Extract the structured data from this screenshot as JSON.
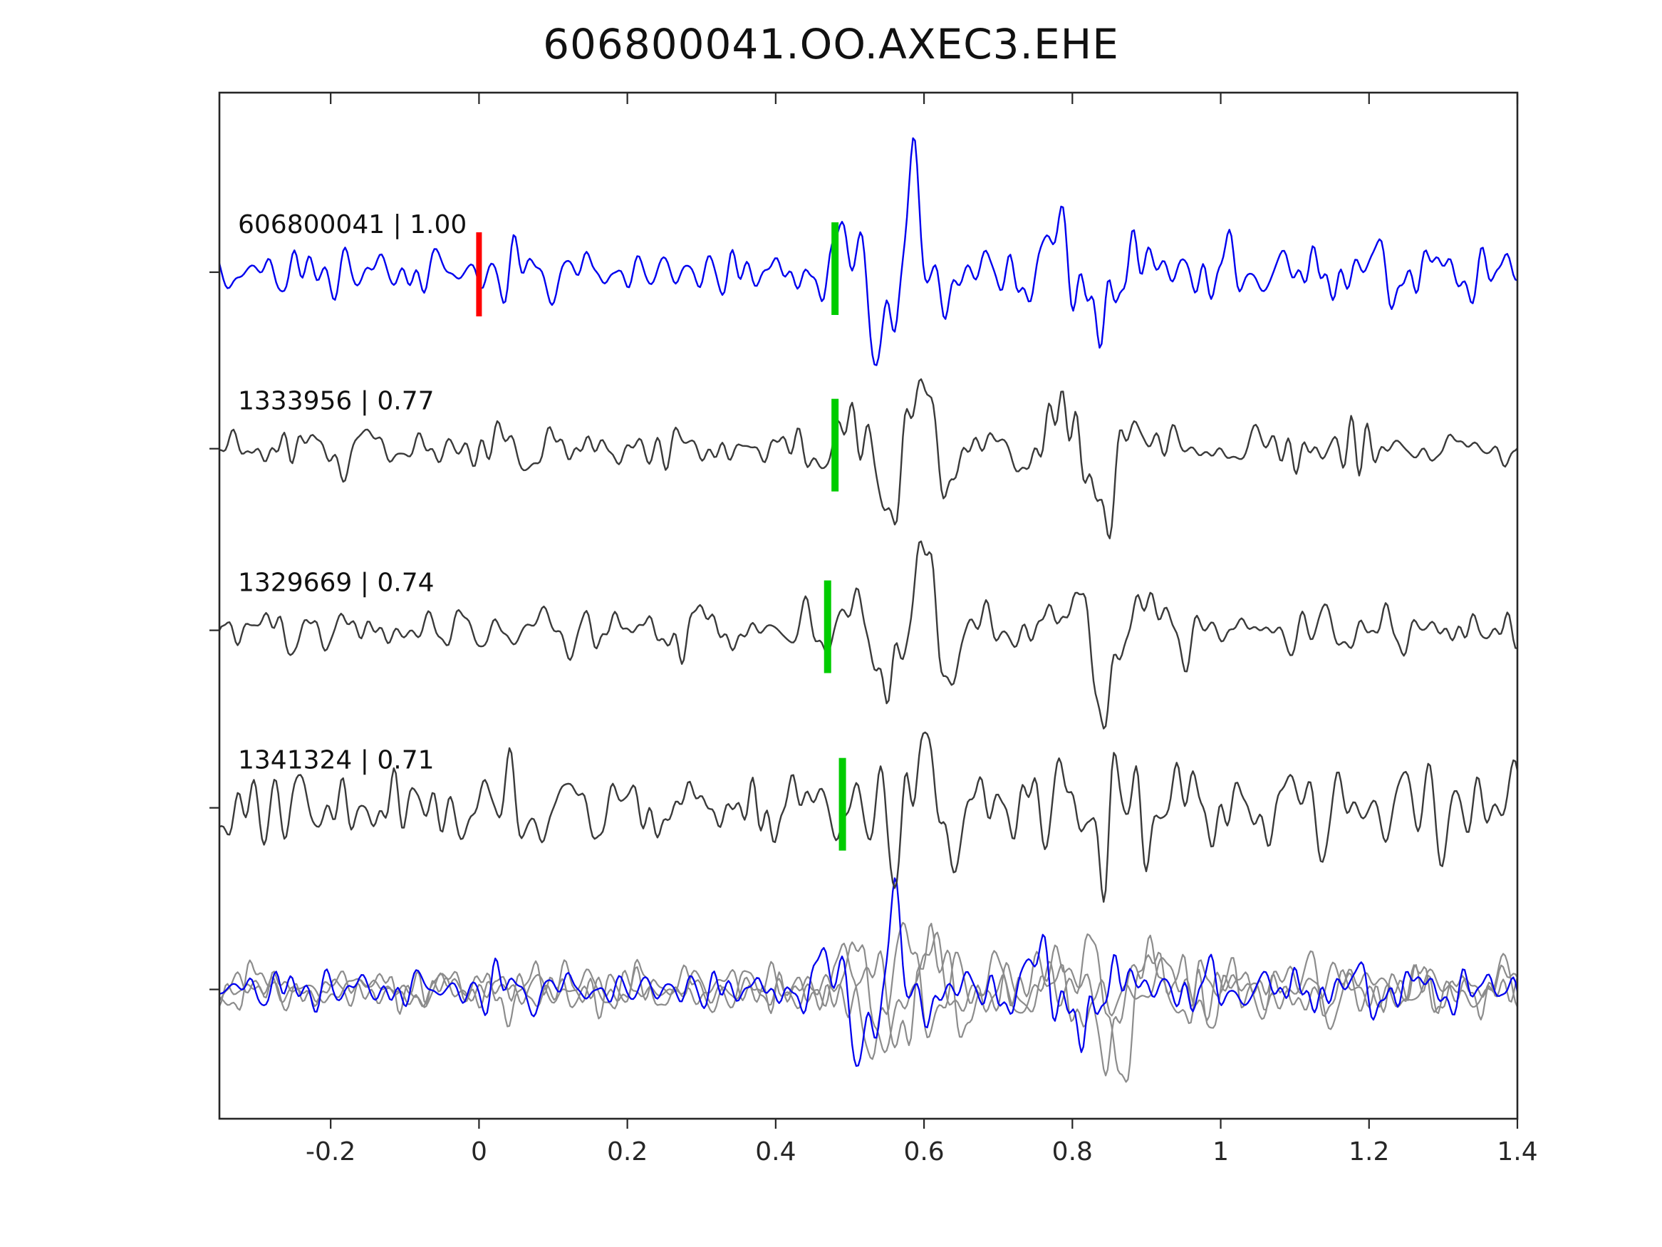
{
  "title": "606800041.OO.AXEC3.EHE",
  "chart_data": {
    "type": "line",
    "subtype": "seismogram-correlation-stack",
    "title": "606800041.OO.AXEC3.EHE",
    "xlabel": "",
    "ylabel": "",
    "xlim": [
      -0.35,
      1.4
    ],
    "xticks": [
      -0.2,
      0,
      0.2,
      0.4,
      0.6,
      0.8,
      1,
      1.2,
      1.4
    ],
    "xtick_labels": [
      "-0.2",
      "0",
      "0.2",
      "0.4",
      "0.6",
      "0.8",
      "1",
      "1.2",
      "1.4"
    ],
    "grid": false,
    "legend": "none",
    "colors": {
      "reference": "#0000ee",
      "match": "#3a3a3a",
      "overlay_gray": "#8c8c8c",
      "pick_green": "#00cc00",
      "pick_red": "#ff0000",
      "frame": "#262626",
      "tick_label": "#262626"
    },
    "traces": [
      {
        "id": "606800041",
        "correlation": "1.00",
        "label": "606800041 | 1.00",
        "color_role": "reference",
        "baseline_frac": 0.175,
        "red_marker_t": 0.0,
        "green_marker_t": 0.48,
        "seed": 11,
        "noise_amp": 1.0,
        "wavelet_amp": 1.0
      },
      {
        "id": "1333956",
        "correlation": "0.77",
        "label": "1333956 | 0.77",
        "color_role": "match",
        "baseline_frac": 0.347,
        "red_marker_t": null,
        "green_marker_t": 0.48,
        "seed": 23,
        "noise_amp": 0.8,
        "wavelet_amp": 1.0
      },
      {
        "id": "1329669",
        "correlation": "0.74",
        "label": "1329669 | 0.74",
        "color_role": "match",
        "baseline_frac": 0.524,
        "red_marker_t": null,
        "green_marker_t": 0.47,
        "seed": 37,
        "noise_amp": 0.85,
        "wavelet_amp": 1.05
      },
      {
        "id": "1341324",
        "correlation": "0.71",
        "label": "1341324 | 0.71",
        "color_role": "match",
        "baseline_frac": 0.697,
        "red_marker_t": null,
        "green_marker_t": 0.49,
        "seed": 51,
        "noise_amp": 1.65,
        "wavelet_amp": 0.95
      }
    ],
    "overlay": {
      "baseline_frac": 0.874,
      "gray_shifts": [
        0.012,
        -0.014,
        0.02
      ],
      "gray_wavelet_amps": [
        0.95,
        1.05,
        0.9
      ],
      "blue_shift": -0.025
    },
    "event_onset_t": 0.48,
    "packet_centers_t": [
      0.565,
      0.835
    ]
  }
}
